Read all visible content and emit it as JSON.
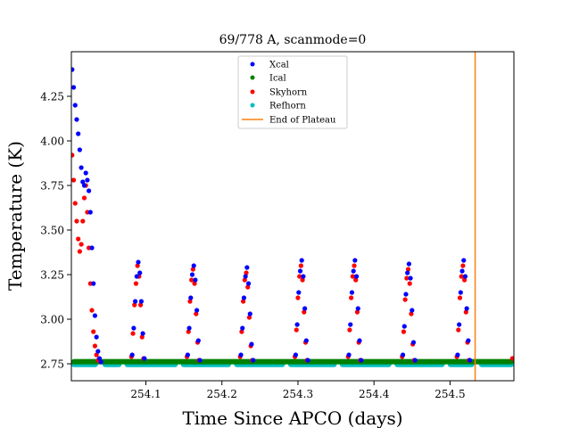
{
  "chart_data": {
    "type": "scatter",
    "title": "69/778 A, scanmode=0",
    "xlabel": "Time Since APCO (days)",
    "ylabel": "Temperature (K)",
    "xlim": [
      254.002,
      254.584
    ],
    "ylim": [
      2.655,
      4.5
    ],
    "xticks": [
      254.1,
      254.2,
      254.3,
      254.4,
      254.5
    ],
    "xtick_labels": [
      "254.1",
      "254.2",
      "254.3",
      "254.4",
      "254.5"
    ],
    "yticks": [
      2.75,
      3.0,
      3.25,
      3.5,
      3.75,
      4.0,
      4.25
    ],
    "ytick_labels": [
      "2.75",
      "3.00",
      "3.25",
      "3.50",
      "3.75",
      "4.00",
      "4.25"
    ],
    "legend_position": "top-center",
    "end_of_plateau_x": 254.533,
    "baseline_level": 2.756,
    "series": [
      {
        "name": "Xcal",
        "color": "#0000ff",
        "kind": "points",
        "x": [
          254.003,
          254.005,
          254.007,
          254.009,
          254.011,
          254.013,
          254.015,
          254.017,
          254.019,
          254.021,
          254.023,
          254.025,
          254.027,
          254.029,
          254.031,
          254.033,
          254.035,
          254.037,
          254.039,
          254.041,
          254.082,
          254.084,
          254.086,
          254.088,
          254.09,
          254.092,
          254.094,
          254.096,
          254.098,
          254.155,
          254.157,
          254.159,
          254.161,
          254.163,
          254.165,
          254.167,
          254.169,
          254.171,
          254.225,
          254.227,
          254.229,
          254.231,
          254.233,
          254.235,
          254.237,
          254.239,
          254.241,
          254.297,
          254.299,
          254.301,
          254.303,
          254.305,
          254.307,
          254.309,
          254.311,
          254.313,
          254.367,
          254.369,
          254.371,
          254.373,
          254.375,
          254.377,
          254.379,
          254.381,
          254.383,
          254.438,
          254.44,
          254.442,
          254.444,
          254.446,
          254.448,
          254.45,
          254.452,
          254.454,
          254.51,
          254.512,
          254.514,
          254.516,
          254.518,
          254.52,
          254.522,
          254.524,
          254.526
        ],
        "y": [
          4.4,
          4.3,
          4.2,
          4.12,
          4.04,
          3.95,
          3.85,
          3.77,
          3.75,
          3.82,
          3.78,
          3.72,
          3.6,
          3.4,
          3.2,
          3.02,
          2.9,
          2.82,
          2.78,
          2.76,
          2.8,
          2.95,
          3.1,
          3.24,
          3.32,
          3.26,
          3.1,
          2.92,
          2.78,
          2.8,
          2.95,
          3.12,
          3.25,
          3.3,
          3.22,
          3.05,
          2.88,
          2.77,
          2.8,
          2.95,
          3.12,
          3.24,
          3.29,
          3.2,
          3.03,
          2.86,
          2.77,
          2.8,
          2.97,
          3.15,
          3.27,
          3.33,
          3.24,
          3.06,
          2.88,
          2.77,
          2.8,
          2.97,
          3.15,
          3.27,
          3.33,
          3.24,
          3.06,
          2.88,
          2.77,
          2.8,
          2.96,
          3.14,
          3.26,
          3.31,
          3.23,
          3.05,
          2.87,
          2.77,
          2.8,
          2.97,
          3.15,
          3.27,
          3.33,
          3.24,
          3.06,
          2.88,
          2.77
        ]
      },
      {
        "name": "Ical",
        "color": "#008000",
        "kind": "band",
        "x_start": 254.002,
        "x_end": 254.584,
        "y": 2.762
      },
      {
        "name": "Skyhorn",
        "color": "#ff0000",
        "kind": "points",
        "x": [
          254.003,
          254.005,
          254.007,
          254.009,
          254.011,
          254.013,
          254.015,
          254.017,
          254.019,
          254.021,
          254.023,
          254.025,
          254.027,
          254.029,
          254.031,
          254.033,
          254.035,
          254.037,
          254.081,
          254.083,
          254.085,
          254.087,
          254.089,
          254.091,
          254.093,
          254.095,
          254.097,
          254.154,
          254.156,
          254.158,
          254.16,
          254.162,
          254.164,
          254.166,
          254.168,
          254.17,
          254.224,
          254.226,
          254.228,
          254.23,
          254.232,
          254.234,
          254.236,
          254.238,
          254.24,
          254.296,
          254.298,
          254.3,
          254.302,
          254.304,
          254.306,
          254.308,
          254.31,
          254.312,
          254.366,
          254.368,
          254.37,
          254.372,
          254.374,
          254.376,
          254.378,
          254.38,
          254.382,
          254.437,
          254.439,
          254.441,
          254.443,
          254.445,
          254.447,
          254.449,
          254.451,
          254.453,
          254.509,
          254.511,
          254.513,
          254.515,
          254.517,
          254.519,
          254.521,
          254.523,
          254.525,
          254.582
        ],
        "y": [
          3.92,
          3.78,
          3.65,
          3.55,
          3.45,
          3.38,
          3.42,
          3.55,
          3.68,
          3.75,
          3.6,
          3.4,
          3.2,
          3.05,
          2.93,
          2.85,
          2.8,
          2.77,
          2.79,
          2.92,
          3.08,
          3.2,
          3.3,
          3.24,
          3.08,
          2.9,
          2.78,
          2.79,
          2.93,
          3.1,
          3.22,
          3.28,
          3.2,
          3.03,
          2.87,
          2.77,
          2.79,
          2.93,
          3.1,
          3.22,
          3.26,
          3.18,
          3.01,
          2.85,
          2.77,
          2.79,
          2.94,
          3.12,
          3.24,
          3.3,
          3.22,
          3.04,
          2.87,
          2.77,
          2.79,
          2.94,
          3.12,
          3.24,
          3.3,
          3.22,
          3.04,
          2.87,
          2.77,
          2.79,
          2.93,
          3.11,
          3.23,
          3.28,
          3.2,
          3.03,
          2.86,
          2.77,
          2.79,
          2.94,
          3.12,
          3.24,
          3.3,
          3.22,
          3.04,
          2.87,
          2.77,
          2.78
        ]
      },
      {
        "name": "Refhorn",
        "color": "#00bfbf",
        "kind": "segments",
        "segments": [
          [
            254.002,
            254.037
          ],
          [
            254.043,
            254.068
          ],
          [
            254.072,
            254.142
          ],
          [
            254.146,
            254.212
          ],
          [
            254.216,
            254.283
          ],
          [
            254.287,
            254.351
          ],
          [
            254.355,
            254.423
          ],
          [
            254.427,
            254.493
          ],
          [
            254.497,
            254.532
          ],
          [
            254.538,
            254.584
          ]
        ],
        "y": 2.746
      },
      {
        "name": "End of Plateau",
        "color": "#ff7f0e",
        "kind": "vline",
        "x": 254.533
      }
    ]
  }
}
